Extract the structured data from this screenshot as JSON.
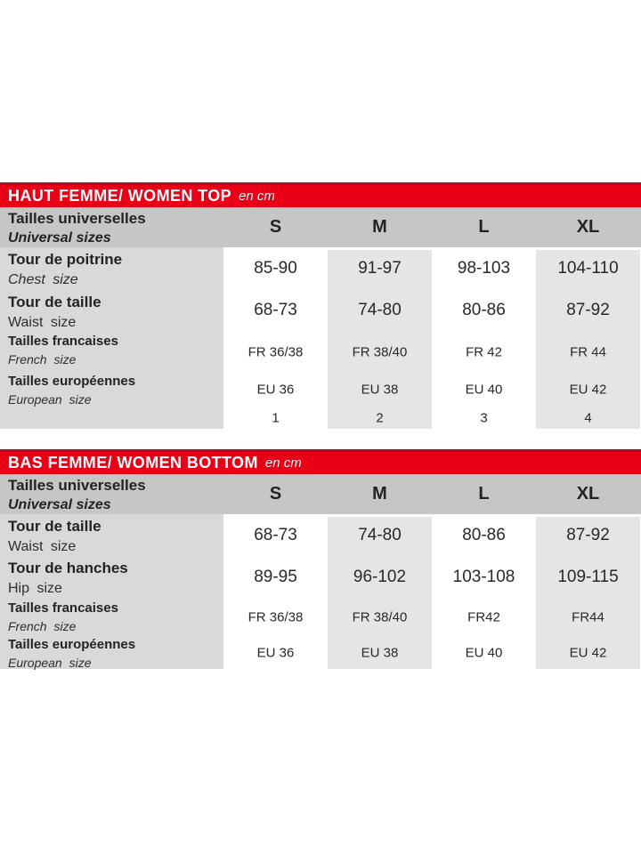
{
  "colors": {
    "accent_red": "#e80017",
    "accent_red_dark": "#a81218",
    "header_gray": "#c5c6c6",
    "label_column_gray": "#d8d9d9",
    "alt_column_gray": "#e4e5e5",
    "text": "#232323"
  },
  "tables": [
    {
      "title": "HAUT FEMME/ WOMEN TOP",
      "unit": "en cm",
      "header": {
        "label_fr": "Tailles universelles",
        "label_en": "Universal sizes",
        "sizes": [
          "S",
          "M",
          "L",
          "XL"
        ]
      },
      "rows": [
        {
          "label_fr": "Tour de poitrine",
          "label_en": "Chest size",
          "values": [
            "85-90",
            "91-97",
            "98-103",
            "104-110"
          ]
        },
        {
          "label_fr": "Tour de taille",
          "label_en": "Waist size",
          "values": [
            "68-73",
            "74-80",
            "80-86",
            "87-92"
          ]
        },
        {
          "label_fr": "Tailles francaises",
          "label_en": "French size",
          "values": [
            "FR 36/38",
            "FR 38/40",
            "FR 42",
            "FR 44"
          ]
        },
        {
          "label_fr": "Tailles européennes",
          "label_en": "European size",
          "values": [
            "EU 36",
            "EU 38",
            "EU 40",
            "EU 42"
          ]
        },
        {
          "values": [
            "1",
            "2",
            "3",
            "4"
          ]
        }
      ]
    },
    {
      "title": "BAS FEMME/ WOMEN BOTTOM",
      "unit": "en cm",
      "header": {
        "label_fr": "Tailles universelles",
        "label_en": "Universal sizes",
        "sizes": [
          "S",
          "M",
          "L",
          "XL"
        ]
      },
      "rows": [
        {
          "label_fr": "Tour de taille",
          "label_en": "Waist size",
          "values": [
            "68-73",
            "74-80",
            "80-86",
            "87-92"
          ]
        },
        {
          "label_fr": "Tour de hanches",
          "label_en": "Hip size",
          "values": [
            "89-95",
            "96-102",
            "103-108",
            "109-115"
          ]
        },
        {
          "label_fr": "Tailles francaises",
          "label_en": "French size",
          "values": [
            "FR 36/38",
            "FR 38/40",
            "FR42",
            "FR44"
          ]
        },
        {
          "label_fr": "Tailles européennes",
          "label_en": "European size",
          "values": [
            "EU 36",
            "EU 38",
            "EU 40",
            "EU 42"
          ]
        }
      ]
    }
  ]
}
